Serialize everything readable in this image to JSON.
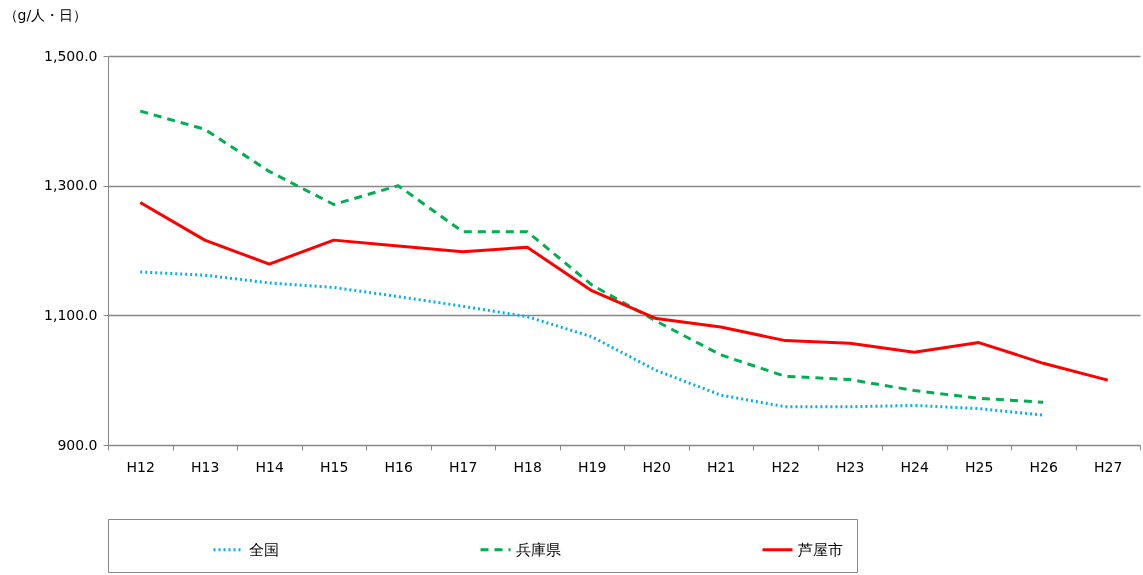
{
  "chart_data": {
    "type": "line",
    "ylabel": "（g/人・日）",
    "categories": [
      "H12",
      "H13",
      "H14",
      "H15",
      "H16",
      "H17",
      "H18",
      "H19",
      "H20",
      "H21",
      "H22",
      "H23",
      "H24",
      "H25",
      "H26",
      "H27"
    ],
    "series": [
      {
        "name": "全国",
        "color": "#00b0f0",
        "line_style": "dotted",
        "values": [
          1167,
          1162,
          1150,
          1143,
          1129,
          1114,
          1098,
          1067,
          1015,
          977,
          959,
          959,
          961,
          956,
          946,
          null
        ]
      },
      {
        "name": "兵庫県",
        "color": "#00b050",
        "line_style": "dashed",
        "values": [
          1415,
          1387,
          1322,
          1271,
          1300,
          1229,
          1229,
          1147,
          1091,
          1039,
          1006,
          1001,
          984,
          972,
          966,
          null
        ]
      },
      {
        "name": "芦屋市",
        "color": "#ff0000",
        "line_style": "solid",
        "values": [
          1274,
          1216,
          1179,
          1216,
          1207,
          1198,
          1205,
          1138,
          1095,
          1082,
          1061,
          1057,
          1043,
          1058,
          1026,
          1000
        ]
      }
    ],
    "ylim": [
      900,
      1500
    ],
    "yticks": [
      {
        "value": 900,
        "label": "900.0"
      },
      {
        "value": 1100,
        "label": "1,100.0"
      },
      {
        "value": 1300,
        "label": "1,300.0"
      },
      {
        "value": 1500,
        "label": "1,500.0"
      }
    ],
    "grid": "y",
    "legend": "bottom"
  }
}
